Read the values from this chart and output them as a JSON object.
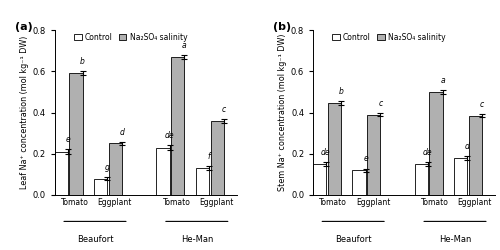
{
  "panel_a": {
    "title": "(a)",
    "ylabel": "Leaf Na⁺ concentration (mol kg⁻¹ DW)",
    "ylim": [
      0.0,
      0.8
    ],
    "yticks": [
      0.0,
      0.2,
      0.4,
      0.6,
      0.8
    ],
    "groups": [
      "Beaufort",
      "He-Man"
    ],
    "scions": [
      "Tomato",
      "Eggplant",
      "Tomato",
      "Eggplant"
    ],
    "control_values": [
      0.21,
      0.08,
      0.23,
      0.13
    ],
    "salinity_values": [
      0.59,
      0.25,
      0.67,
      0.36
    ],
    "control_errors": [
      0.012,
      0.008,
      0.012,
      0.01
    ],
    "salinity_errors": [
      0.01,
      0.008,
      0.01,
      0.01
    ],
    "control_letters": [
      "e",
      "g",
      "de",
      "f"
    ],
    "salinity_letters": [
      "b",
      "d",
      "a",
      "c"
    ]
  },
  "panel_b": {
    "title": "(b)",
    "ylabel": "Stem Na⁺ concentration (mol kg⁻¹ DW)",
    "ylim": [
      0.0,
      0.8
    ],
    "yticks": [
      0.0,
      0.2,
      0.4,
      0.6,
      0.8
    ],
    "groups": [
      "Beaufort",
      "He-Man"
    ],
    "scions": [
      "Tomato",
      "Eggplant",
      "Tomato",
      "Eggplant"
    ],
    "control_values": [
      0.15,
      0.12,
      0.15,
      0.18
    ],
    "salinity_values": [
      0.445,
      0.39,
      0.5,
      0.385
    ],
    "control_errors": [
      0.01,
      0.008,
      0.01,
      0.01
    ],
    "salinity_errors": [
      0.01,
      0.008,
      0.01,
      0.008
    ],
    "control_letters": [
      "de",
      "e",
      "de",
      "d"
    ],
    "salinity_letters": [
      "b",
      "c",
      "a",
      "c"
    ]
  },
  "legend_labels": [
    "Control",
    "Na₂SO₄ salinity"
  ],
  "control_color": "#ffffff",
  "salinity_color": "#b0b0b0",
  "bar_edgecolor": "black",
  "bar_width": 0.32
}
